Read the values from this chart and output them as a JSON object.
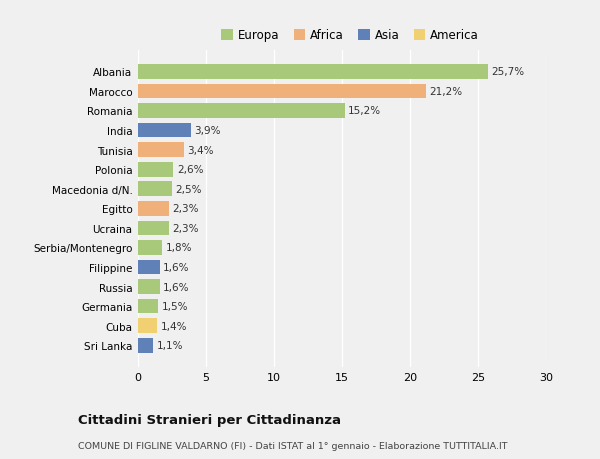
{
  "countries": [
    "Albania",
    "Marocco",
    "Romania",
    "India",
    "Tunisia",
    "Polonia",
    "Macedonia d/N.",
    "Egitto",
    "Ucraina",
    "Serbia/Montenegro",
    "Filippine",
    "Russia",
    "Germania",
    "Cuba",
    "Sri Lanka"
  ],
  "values": [
    25.7,
    21.2,
    15.2,
    3.9,
    3.4,
    2.6,
    2.5,
    2.3,
    2.3,
    1.8,
    1.6,
    1.6,
    1.5,
    1.4,
    1.1
  ],
  "labels": [
    "25,7%",
    "21,2%",
    "15,2%",
    "3,9%",
    "3,4%",
    "2,6%",
    "2,5%",
    "2,3%",
    "2,3%",
    "1,8%",
    "1,6%",
    "1,6%",
    "1,5%",
    "1,4%",
    "1,1%"
  ],
  "continents": [
    "Europa",
    "Africa",
    "Europa",
    "Asia",
    "Africa",
    "Europa",
    "Europa",
    "Africa",
    "Europa",
    "Europa",
    "Asia",
    "Europa",
    "Europa",
    "America",
    "Asia"
  ],
  "colors": {
    "Europa": "#a8c87a",
    "Africa": "#f0b07a",
    "Asia": "#6080b8",
    "America": "#f0d070"
  },
  "xlim": [
    0,
    30
  ],
  "xticks": [
    0,
    5,
    10,
    15,
    20,
    25,
    30
  ],
  "title": "Cittadini Stranieri per Cittadinanza",
  "subtitle": "COMUNE DI FIGLINE VALDARNO (FI) - Dati ISTAT al 1° gennaio - Elaborazione TUTTITALIA.IT",
  "bg_color": "#f0f0f0",
  "grid_color": "#ffffff",
  "bar_height": 0.75,
  "legend_order": [
    "Europa",
    "Africa",
    "Asia",
    "America"
  ]
}
